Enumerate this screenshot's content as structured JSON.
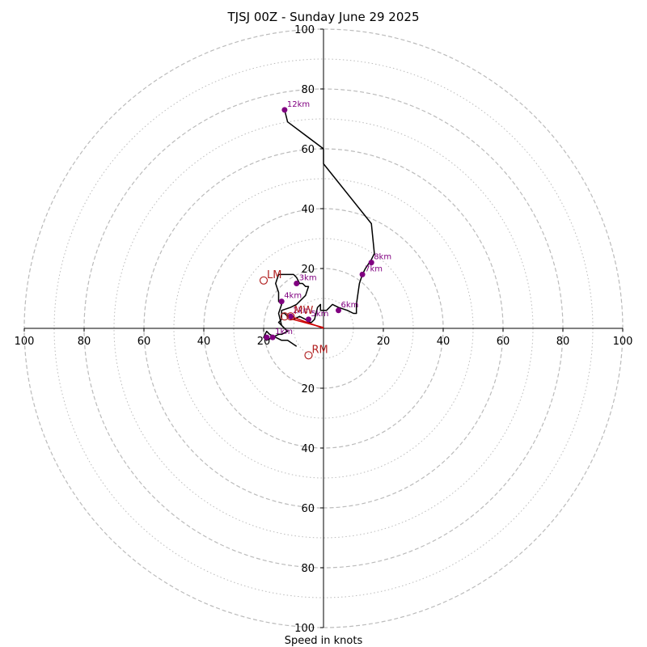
{
  "chart_data": {
    "type": "hodograph",
    "title": "TJSJ 00Z - Sunday June 29 2025",
    "xlabel": "Speed in knots",
    "range": [
      -100,
      100
    ],
    "major_rings": [
      20,
      40,
      60,
      80,
      100
    ],
    "minor_rings": [
      10,
      30,
      50,
      70,
      90
    ],
    "x_tick_labels": [
      "100",
      "80",
      "60",
      "40",
      "20",
      "20",
      "40",
      "60",
      "80",
      "100"
    ],
    "y_tick_labels": [
      "100",
      "80",
      "60",
      "40",
      "20",
      "20",
      "40",
      "60",
      "80",
      "100"
    ],
    "colors": {
      "trace": "#000000",
      "height_markers": "#800080",
      "mean_wind_vector": "#cc0000",
      "storm_motion": "#b22222",
      "rings": "#bbbbbb"
    },
    "trace": [
      [
        -9,
        -6
      ],
      [
        -12,
        -4
      ],
      [
        -14,
        -4
      ],
      [
        -16,
        -3
      ],
      [
        -18,
        -2
      ],
      [
        -19,
        -1
      ],
      [
        -20,
        -3
      ],
      [
        -19,
        -4
      ],
      [
        -17,
        -3
      ],
      [
        -15,
        -2
      ],
      [
        -14,
        -2
      ],
      [
        -12,
        -1
      ],
      [
        -14,
        1
      ],
      [
        -15,
        2
      ],
      [
        -14,
        3
      ],
      [
        -14,
        5
      ],
      [
        -13,
        5
      ],
      [
        -12,
        4
      ],
      [
        -10,
        4
      ],
      [
        -11,
        3
      ],
      [
        -10,
        3
      ],
      [
        -8,
        4
      ],
      [
        -6,
        3
      ],
      [
        -5,
        2
      ],
      [
        -4,
        2
      ],
      [
        -3,
        3
      ],
      [
        -2,
        7
      ],
      [
        -1,
        8
      ],
      [
        -1,
        6
      ],
      [
        1,
        6
      ],
      [
        3,
        8
      ],
      [
        5,
        7
      ],
      [
        8,
        6
      ],
      [
        10,
        5
      ],
      [
        11,
        5
      ],
      [
        11,
        8
      ],
      [
        12,
        15
      ],
      [
        13,
        18
      ],
      [
        14,
        20
      ],
      [
        16,
        23
      ],
      [
        17,
        25
      ],
      [
        16,
        35
      ],
      [
        0,
        55
      ],
      [
        0,
        60
      ],
      [
        -12,
        69
      ],
      [
        -13,
        73
      ]
    ],
    "upper_branch": [
      [
        -14,
        1
      ],
      [
        -15,
        5
      ],
      [
        -14,
        8
      ],
      [
        -15,
        9
      ],
      [
        -15,
        12
      ],
      [
        -16,
        15
      ],
      [
        -15,
        18
      ],
      [
        -12,
        18
      ],
      [
        -10,
        18
      ],
      [
        -9,
        17
      ],
      [
        -8,
        15
      ],
      [
        -7,
        15
      ],
      [
        -6,
        14
      ],
      [
        -5,
        14
      ],
      [
        -6,
        11
      ],
      [
        -7,
        10
      ],
      [
        -8,
        9
      ],
      [
        -9,
        8
      ],
      [
        -11,
        7
      ],
      [
        -14,
        6
      ],
      [
        -14,
        5
      ]
    ],
    "height_markers": [
      {
        "label": "1km",
        "u": -17,
        "v": -3
      },
      {
        "label": "2km",
        "u": -11,
        "v": 4
      },
      {
        "label": "3km",
        "u": -9,
        "v": 15
      },
      {
        "label": "4km",
        "u": -14,
        "v": 9
      },
      {
        "label": "5km",
        "u": -5,
        "v": 3
      },
      {
        "label": "6km",
        "u": 5,
        "v": 6
      },
      {
        "label": "7km",
        "u": 13,
        "v": 18
      },
      {
        "label": "8km",
        "u": 16,
        "v": 22
      },
      {
        "label": "12km",
        "u": -13,
        "v": 73
      },
      {
        "label": "",
        "u": -19,
        "v": -3
      }
    ],
    "storm_motions": [
      {
        "label": "LM",
        "u": -20,
        "v": 16
      },
      {
        "label": "RM",
        "u": -5,
        "v": -9
      },
      {
        "label": "MW",
        "u": -11,
        "v": 4
      },
      {
        "label": "",
        "u": -13,
        "v": 4
      }
    ],
    "mean_wind_vector": {
      "from": [
        0,
        0
      ],
      "to": [
        -11,
        4
      ]
    }
  }
}
